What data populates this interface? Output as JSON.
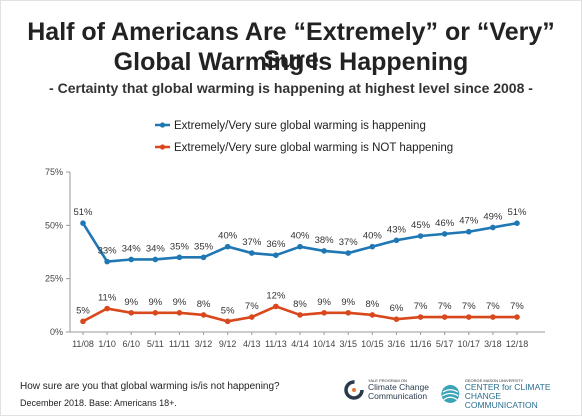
{
  "header": {
    "title_line1": "Half of Americans Are “Extremely” or “Very” Sure",
    "title_line2": "Global Warming Is Happening",
    "subtitle": "- Certainty that global warming is happening at highest level since 2008 -"
  },
  "footer": {
    "question": "How sure are you that global warming is/is not happening?",
    "note": "December 2018. Base: Americans 18+."
  },
  "logos": {
    "yale": {
      "small": "YALE PROGRAM ON",
      "line1": "Climate Change",
      "line2": "Communication"
    },
    "gmu": {
      "small": "GEORGE MASON UNIVERSITY",
      "line1": "CENTER for CLIMATE CHANGE",
      "line2": "COMMUNICATION"
    }
  },
  "chart_data": {
    "type": "line",
    "title": "Half of Americans Are “Extremely” or “Very” Sure Global Warming Is Happening",
    "categories": [
      "11/08",
      "1/10",
      "6/10",
      "5/11",
      "11/11",
      "3/12",
      "9/12",
      "4/13",
      "11/13",
      "4/14",
      "10/14",
      "3/15",
      "10/15",
      "3/16",
      "11/16",
      "5/17",
      "10/17",
      "3/18",
      "12/18"
    ],
    "series": [
      {
        "name": "Extremely/Very sure global warming is happening",
        "color": "#1f77b4",
        "values": [
          51,
          33,
          34,
          34,
          35,
          35,
          40,
          37,
          36,
          40,
          38,
          37,
          40,
          43,
          45,
          46,
          47,
          49,
          51
        ],
        "labels": [
          "51%",
          "33%",
          "34%",
          "34%",
          "35%",
          "35%",
          "40%",
          "37%",
          "36%",
          "40%",
          "38%",
          "37%",
          "40%",
          "43%",
          "45%",
          "46%",
          "47%",
          "49%",
          "51%"
        ]
      },
      {
        "name": "Extremely/Very sure global warming is NOT happening",
        "color": "#d9481c",
        "values": [
          5,
          11,
          9,
          9,
          9,
          8,
          5,
          7,
          12,
          8,
          9,
          9,
          8,
          6,
          7,
          7,
          7,
          7,
          7
        ],
        "labels": [
          "5%",
          "11%",
          "9%",
          "9%",
          "9%",
          "8%",
          "5%",
          "7%",
          "12%",
          "8%",
          "9%",
          "9%",
          "8%",
          "6%",
          "7%",
          "7%",
          "7%",
          "7%",
          "7%"
        ]
      }
    ],
    "ylim": [
      0,
      75
    ],
    "yticks": [
      "0%",
      "25%",
      "50%",
      "75%"
    ],
    "ytick_values": [
      0,
      25,
      50,
      75
    ],
    "grid": false,
    "legend_position": "top-center"
  }
}
